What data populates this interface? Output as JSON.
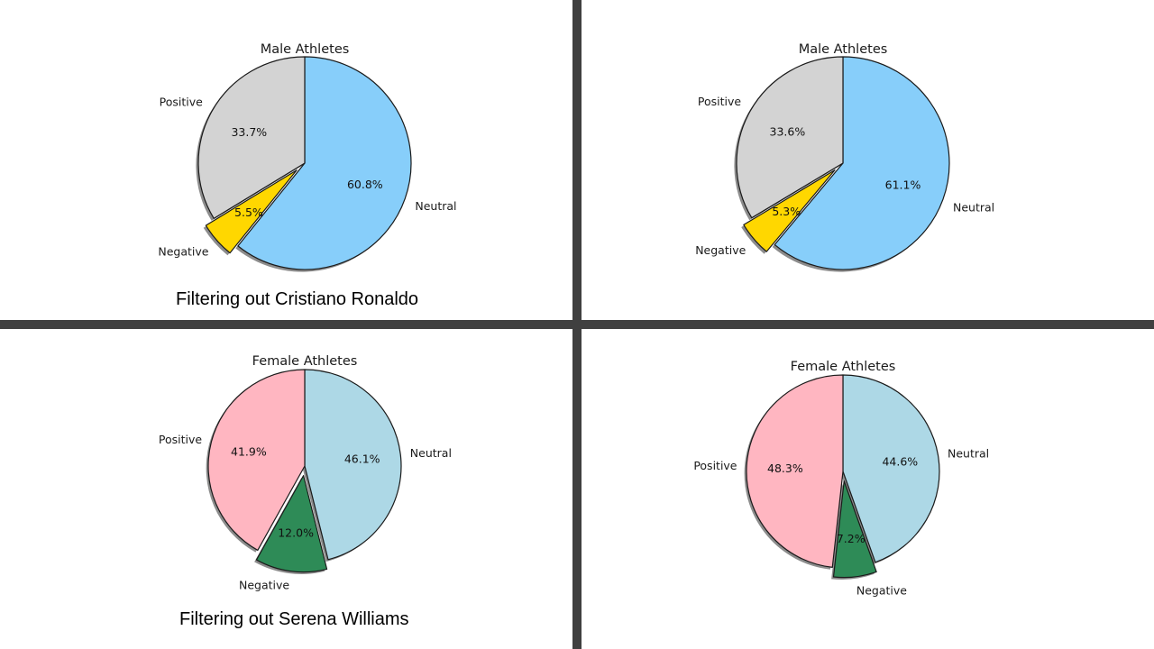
{
  "captions": {
    "top": "Filtering out Cristiano Ronaldo",
    "bottom": "Filtering out Serena Williams"
  },
  "chart_data": [
    {
      "type": "pie",
      "title": "Male Athletes",
      "labels": [
        "Neutral",
        "Negative",
        "Positive"
      ],
      "values": [
        60.8,
        5.5,
        33.7
      ],
      "autopct": [
        "60.8%",
        "5.5%",
        "33.7%"
      ],
      "colors": [
        "#87cefa",
        "#ffd700",
        "#d3d3d3"
      ],
      "explode": [
        0,
        0.1,
        0
      ],
      "shadow": true,
      "start": "top, clockwise"
    },
    {
      "type": "pie",
      "title": "Male Athletes",
      "labels": [
        "Neutral",
        "Negative",
        "Positive"
      ],
      "values": [
        61.1,
        5.3,
        33.6
      ],
      "autopct": [
        "61.1%",
        "5.3%",
        "33.6%"
      ],
      "colors": [
        "#87cefa",
        "#ffd700",
        "#d3d3d3"
      ],
      "explode": [
        0,
        0.1,
        0
      ],
      "shadow": true,
      "start": "top, clockwise"
    },
    {
      "type": "pie",
      "title": "Female Athletes",
      "labels": [
        "Neutral",
        "Negative",
        "Positive"
      ],
      "values": [
        46.1,
        12.0,
        41.9
      ],
      "autopct": [
        "46.1%",
        "12.0%",
        "41.9%"
      ],
      "colors": [
        "#add8e6",
        "#2e8b57",
        "#ffb6c1"
      ],
      "explode": [
        0,
        0.1,
        0
      ],
      "shadow": true,
      "start": "top, clockwise"
    },
    {
      "type": "pie",
      "title": "Female Athletes",
      "labels": [
        "Neutral",
        "Negative",
        "Positive"
      ],
      "values": [
        44.6,
        7.2,
        48.3
      ],
      "autopct": [
        "44.6%",
        "7.2%",
        "48.3%"
      ],
      "colors": [
        "#add8e6",
        "#2e8b57",
        "#ffb6c1"
      ],
      "explode": [
        0,
        0.1,
        0
      ],
      "shadow": true,
      "start": "top, clockwise"
    }
  ]
}
